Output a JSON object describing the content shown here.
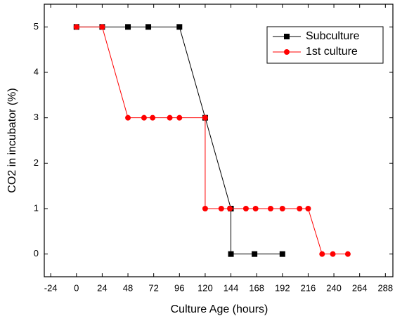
{
  "chart_data": {
    "type": "line",
    "x_label": "Culture Age (hours)",
    "y_label": "CO2 in incubator (%)",
    "xlim": [
      -30,
      295
    ],
    "ylim": [
      -0.5,
      5.5
    ],
    "xticks": [
      -24,
      0,
      24,
      48,
      72,
      96,
      120,
      144,
      168,
      192,
      216,
      240,
      264,
      288
    ],
    "yticks": [
      0,
      1,
      2,
      3,
      4,
      5
    ],
    "legend": "upper right",
    "series": [
      {
        "name": "Subculture",
        "color": "#000000",
        "marker": "square",
        "x": [
          0,
          24,
          48,
          67,
          96,
          120,
          144,
          144,
          166,
          192
        ],
        "values": [
          5,
          5,
          5,
          5,
          5,
          3,
          1,
          0,
          0,
          0
        ]
      },
      {
        "name": "1st culture",
        "color": "#ff0000",
        "marker": "circle",
        "x": [
          0,
          24,
          48,
          63,
          71,
          87,
          96,
          120,
          120,
          135,
          143,
          158,
          167,
          181,
          192,
          208,
          216,
          229,
          239,
          253
        ],
        "values": [
          5,
          5,
          3,
          3,
          3,
          3,
          3,
          3,
          1,
          1,
          1,
          1,
          1,
          1,
          1,
          1,
          1,
          0,
          0,
          0
        ]
      }
    ]
  }
}
